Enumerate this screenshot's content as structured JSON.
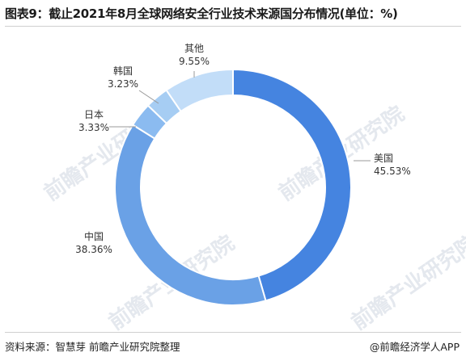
{
  "header": {
    "title": "图表9：截止2021年8月全球网络安全行业技术来源国分布情况(单位：%)"
  },
  "footer": {
    "source": "资料来源：智慧芽 前瞻产业研究院整理",
    "brand": "@前瞻经济学人APP"
  },
  "watermark": {
    "text": "前瞻产业研究院"
  },
  "colors": {
    "美国": "#4584e0",
    "中国": "#6aa1e6",
    "日本": "#8bbbf0",
    "韩国": "#a6cdf3",
    "其他": "#c2ddf8"
  },
  "chart_data": {
    "type": "pie",
    "variant": "donut",
    "title": "图表9：截止2021年8月全球网络安全行业技术来源国分布情况(单位：%)",
    "unit": "%",
    "slices": [
      {
        "name": "美国",
        "label": "45.53%",
        "value": 45.53
      },
      {
        "name": "中国",
        "label": "38.36%",
        "value": 38.36
      },
      {
        "name": "日本",
        "label": "3.33%",
        "value": 3.33
      },
      {
        "name": "韩国",
        "label": "3.23%",
        "value": 3.23
      },
      {
        "name": "其他",
        "label": "9.55%",
        "value": 9.55
      }
    ]
  }
}
